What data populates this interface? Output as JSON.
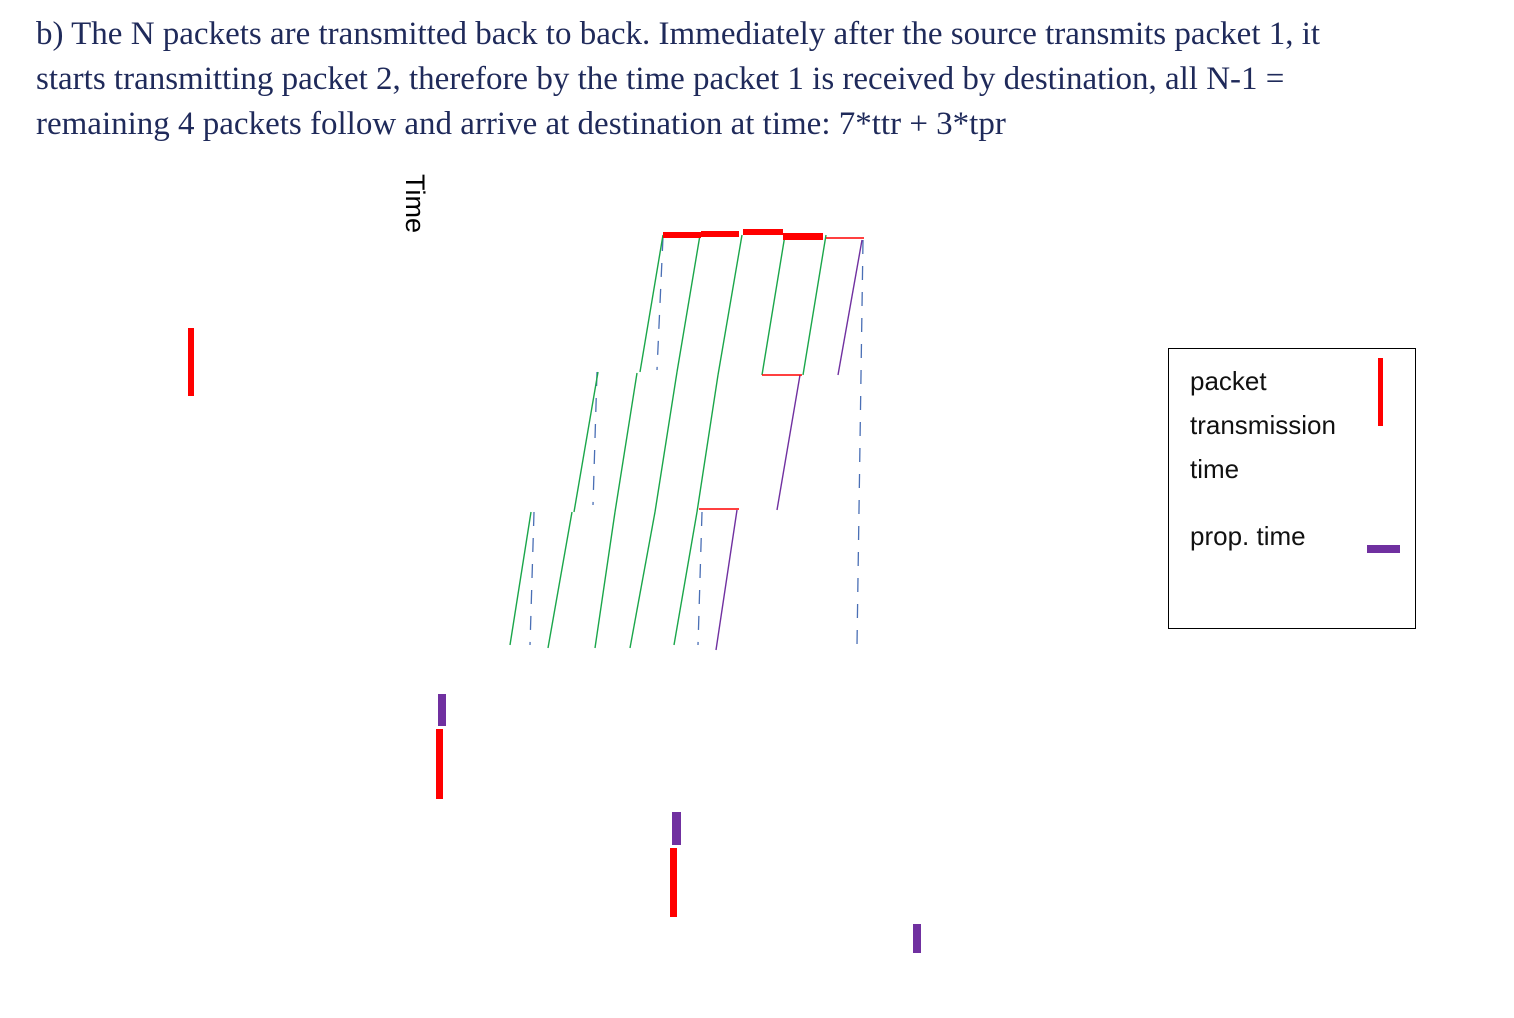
{
  "paragraph": {
    "line1": "b) The N packets are transmitted back to back. Immediately after the source transmits packet 1, it",
    "line2": "starts transmitting packet 2, therefore by the time packet 1 is received by destination, all N-1 =",
    "line3": "remaining 4 packets follow and arrive at destination at time: 7*ttr + 3*tpr"
  },
  "axis_label": "Time",
  "legend": {
    "transmission_line1": "packet",
    "transmission_line2": "transmission",
    "transmission_line3": "time",
    "propagation": "prop. time"
  },
  "colors": {
    "transmission": "#ff0000",
    "propagation": "#7030a0",
    "packet_path": "#1aa64a",
    "node_timeline": "#4a6fb5",
    "text": "#1f2a5a"
  }
}
